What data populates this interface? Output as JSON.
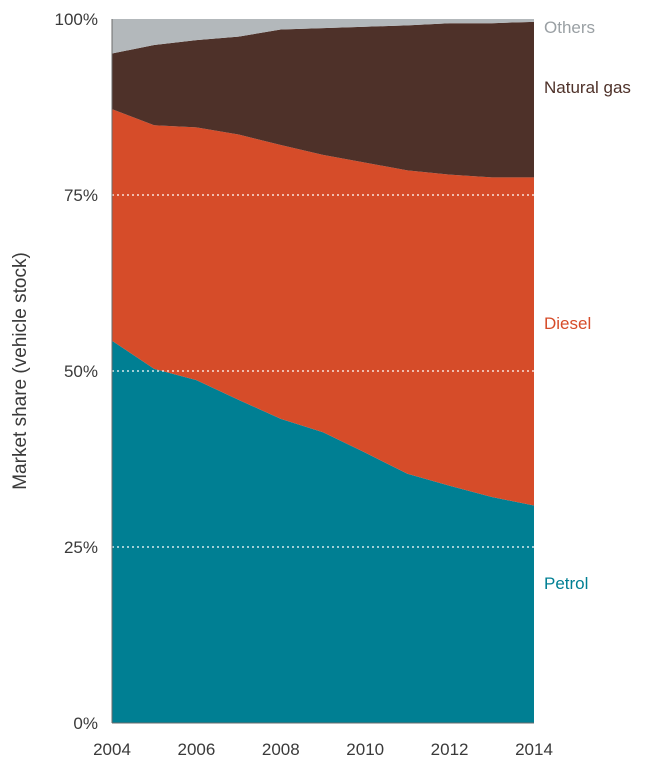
{
  "chart_data": {
    "type": "area",
    "stacked": true,
    "normalized": true,
    "title": "",
    "xlabel": "",
    "ylabel": "Market share (vehicle stock)",
    "x": [
      2004,
      2005,
      2006,
      2007,
      2008,
      2009,
      2010,
      2011,
      2012,
      2013,
      2014
    ],
    "xlim": [
      2004,
      2014
    ],
    "ylim": [
      0,
      100
    ],
    "x_ticks": [
      "2004",
      "2006",
      "2008",
      "2010",
      "2012",
      "2014"
    ],
    "y_ticks": [
      "0%",
      "25%",
      "50%",
      "75%",
      "100%"
    ],
    "grid": "horizontal dotted at 25%, 50%, 75%",
    "legend": "inline labels at right edge",
    "series": [
      {
        "name": "Petrol",
        "color": "#007F93",
        "values": [
          54.3,
          50.3,
          48.7,
          45.9,
          43.2,
          41.3,
          38.4,
          35.4,
          33.7,
          32.1,
          30.9
        ]
      },
      {
        "name": "Diesel",
        "color": "#D64C29",
        "values": [
          32.9,
          34.6,
          35.9,
          37.7,
          38.9,
          39.4,
          41.2,
          43.1,
          44.2,
          45.4,
          46.6
        ]
      },
      {
        "name": "Natural gas",
        "color": "#4E3129",
        "values": [
          7.9,
          11.4,
          12.4,
          13.9,
          16.4,
          18.0,
          19.3,
          20.6,
          21.5,
          21.9,
          22.1
        ]
      },
      {
        "name": "Others",
        "color": "#B3B8BB",
        "values": [
          4.9,
          3.7,
          3.0,
          2.5,
          1.5,
          1.3,
          1.1,
          0.9,
          0.6,
          0.6,
          0.4
        ]
      }
    ]
  }
}
